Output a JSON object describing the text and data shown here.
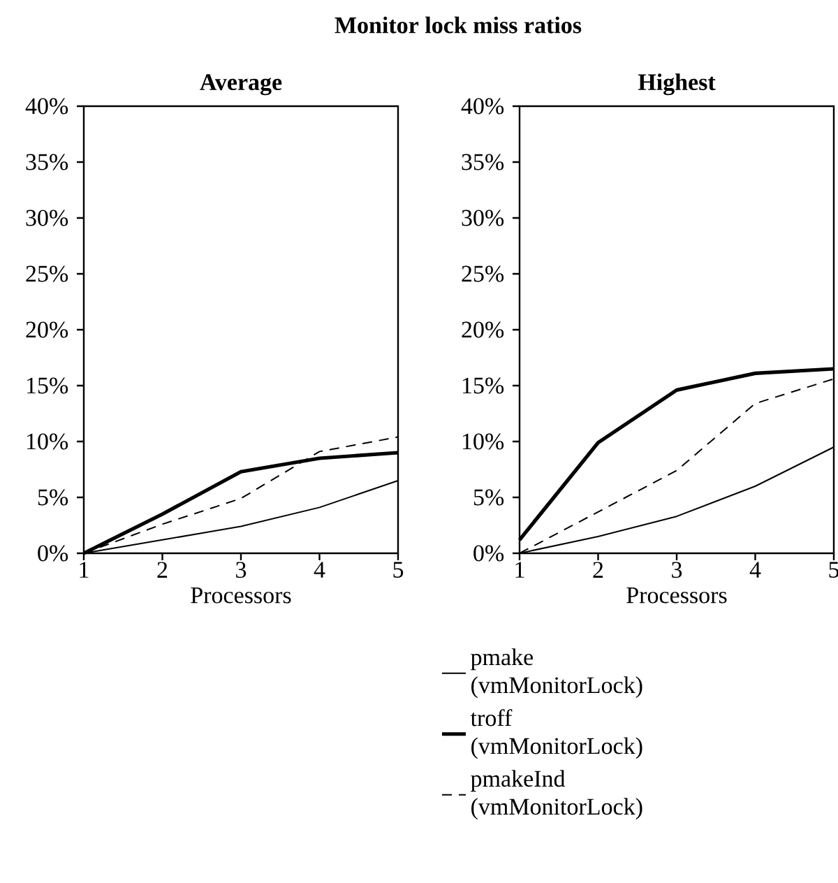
{
  "chart_data": [
    {
      "type": "line",
      "title": "Monitor lock miss ratios",
      "subtitle": "Average",
      "xlabel": "Processors",
      "x": [
        1,
        2,
        3,
        4,
        5
      ],
      "xlim": [
        1,
        5
      ],
      "ylim": [
        0,
        40
      ],
      "xticks": [
        1,
        2,
        3,
        4,
        5
      ],
      "yticks": [
        {
          "value": 0,
          "label": "0%"
        },
        {
          "value": 5,
          "label": "5%"
        },
        {
          "value": 10,
          "label": "10%"
        },
        {
          "value": 15,
          "label": "15%"
        },
        {
          "value": 20,
          "label": "20%"
        },
        {
          "value": 25,
          "label": "25%"
        },
        {
          "value": 30,
          "label": "30%"
        },
        {
          "value": 35,
          "label": "35%"
        },
        {
          "value": 40,
          "label": "40%"
        }
      ],
      "legend": "bottom",
      "series": [
        {
          "name": "pmake (vmMonitorLock)",
          "color": "#000000",
          "line_style": "solid",
          "values": [
            0,
            1.2,
            2.4,
            4.1,
            6.5
          ]
        },
        {
          "name": "troff (vmMonitorLock)",
          "color": "#000000",
          "line_style": "solid",
          "values": [
            0,
            3.5,
            7.3,
            8.5,
            9.0
          ]
        },
        {
          "name": "pmakeInd (vmMonitorLock)",
          "color": "#000000",
          "line_style": "dashed",
          "values": [
            0,
            2.6,
            4.9,
            9.1,
            10.4
          ]
        }
      ]
    },
    {
      "type": "line",
      "subtitle": "Highest",
      "xlabel": "Processors",
      "x": [
        1,
        2,
        3,
        4,
        5
      ],
      "xlim": [
        1,
        5
      ],
      "ylim": [
        0,
        40
      ],
      "xticks": [
        1,
        2,
        3,
        4,
        5
      ],
      "yticks": [
        {
          "value": 0,
          "label": "0%"
        },
        {
          "value": 5,
          "label": "5%"
        },
        {
          "value": 10,
          "label": "10%"
        },
        {
          "value": 15,
          "label": "15%"
        },
        {
          "value": 20,
          "label": "20%"
        },
        {
          "value": 25,
          "label": "25%"
        },
        {
          "value": 30,
          "label": "30%"
        },
        {
          "value": 35,
          "label": "35%"
        },
        {
          "value": 40,
          "label": "40%"
        }
      ],
      "series": [
        {
          "color": "#000000",
          "line_style": "solid",
          "values": [
            0,
            1.5,
            3.3,
            6.0,
            9.5
          ]
        },
        {
          "color": "#000000",
          "line_style": "solid",
          "values": [
            1.2,
            9.9,
            14.6,
            16.1,
            16.5
          ]
        },
        {
          "color": "#000000",
          "line_style": "dashed",
          "values": [
            0,
            3.7,
            7.4,
            13.4,
            15.6
          ]
        }
      ]
    }
  ]
}
